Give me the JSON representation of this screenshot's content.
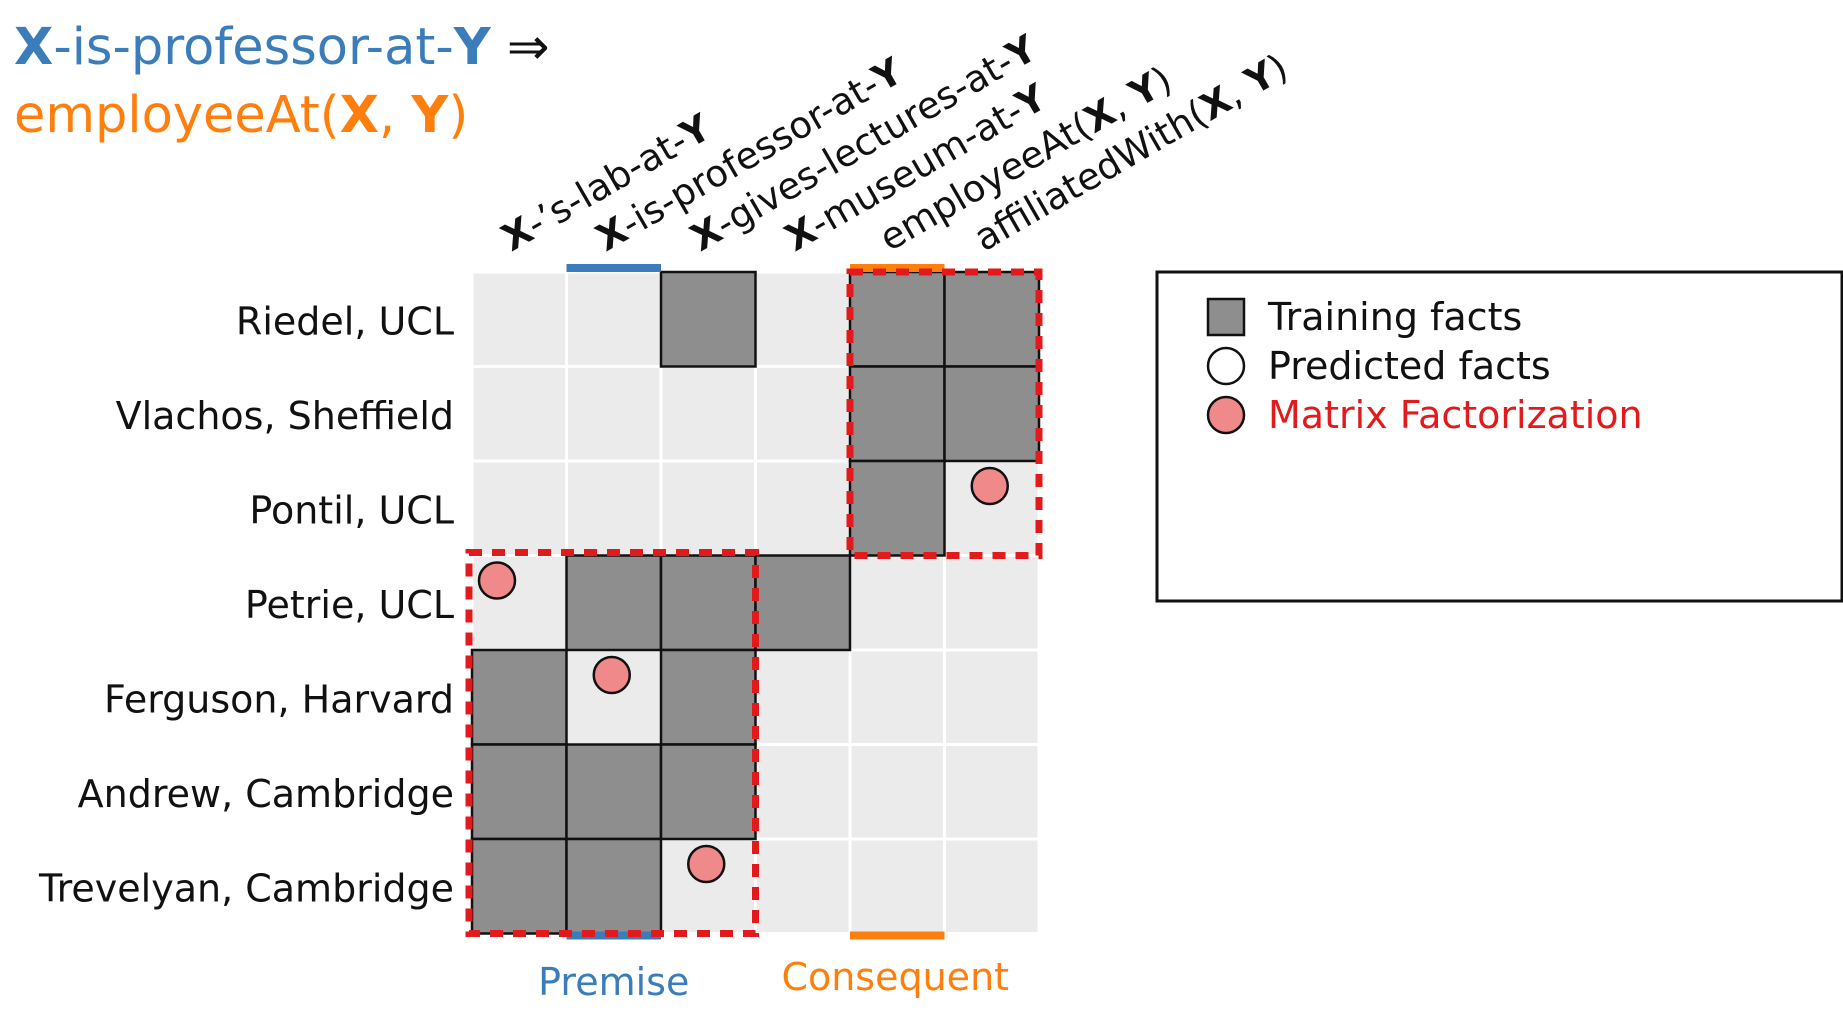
{
  "title": {
    "line1": [
      {
        "text": "X",
        "style": "blue-bold"
      },
      {
        "text": "-is-professor-at-",
        "style": "blue"
      },
      {
        "text": "Y",
        "style": "blue-bold"
      },
      {
        "text": " ⇒",
        "style": "arrow"
      }
    ],
    "line2": [
      {
        "text": "employeeAt(",
        "style": "orange"
      },
      {
        "text": "X",
        "style": "orange-bold"
      },
      {
        "text": ", ",
        "style": "orange"
      },
      {
        "text": "Y",
        "style": "orange-bold"
      },
      {
        "text": ")",
        "style": "orange"
      }
    ]
  },
  "columns": [
    [
      {
        "t": "X",
        "b": true
      },
      {
        "t": "-’s-lab-at-",
        "b": false
      },
      {
        "t": "Y",
        "b": true
      }
    ],
    [
      {
        "t": "X",
        "b": true
      },
      {
        "t": "-is-professor-at-",
        "b": false
      },
      {
        "t": "Y",
        "b": true
      }
    ],
    [
      {
        "t": "X",
        "b": true
      },
      {
        "t": "-gives-lectures-at-",
        "b": false
      },
      {
        "t": "Y",
        "b": true
      }
    ],
    [
      {
        "t": "X",
        "b": true
      },
      {
        "t": "-museum-at-",
        "b": false
      },
      {
        "t": "Y",
        "b": true
      }
    ],
    [
      {
        "t": "employeeAt(",
        "b": false
      },
      {
        "t": "X",
        "b": true
      },
      {
        "t": ", ",
        "b": false
      },
      {
        "t": "Y",
        "b": true
      },
      {
        "t": ")",
        "b": false
      }
    ],
    [
      {
        "t": "affiliatedWith(",
        "b": false
      },
      {
        "t": "X",
        "b": true
      },
      {
        "t": ", ",
        "b": false
      },
      {
        "t": "Y",
        "b": true
      },
      {
        "t": ")",
        "b": false
      }
    ]
  ],
  "rows": [
    "Riedel, UCL",
    "Vlachos, Sheffield",
    "Pontil, UCL",
    "Petrie, UCL",
    "Ferguson, Harvard",
    "Andrew, Cambridge",
    "Trevelyan, Cambridge"
  ],
  "matrix": [
    [
      0,
      0,
      1,
      0,
      1,
      1
    ],
    [
      0,
      0,
      0,
      0,
      1,
      1
    ],
    [
      0,
      0,
      0,
      0,
      1,
      0
    ],
    [
      0,
      1,
      1,
      1,
      0,
      0
    ],
    [
      1,
      0,
      1,
      0,
      0,
      0
    ],
    [
      1,
      1,
      1,
      0,
      0,
      0
    ],
    [
      1,
      1,
      0,
      0,
      0,
      0
    ]
  ],
  "predicted": [
    [
      2,
      5
    ],
    [
      3,
      0
    ],
    [
      4,
      1
    ],
    [
      6,
      2
    ]
  ],
  "highlight_column_premise": 1,
  "highlight_column_consequent": 4,
  "axis_labels": {
    "premise": "Premise",
    "consequent": "Consequent"
  },
  "legend": [
    {
      "label": "Training facts",
      "marker": "square"
    },
    {
      "label": "Predicted facts",
      "marker": "circle"
    },
    {
      "label": "Matrix Factorization",
      "marker": "pink-circle"
    }
  ],
  "colors": {
    "blue": "#3b7dba",
    "orange": "#ff7f0e",
    "red": "#e31a1c",
    "training_fill": "#8e8e8e",
    "empty_fill": "#ebebeb",
    "predicted_fill": "#f08a8a",
    "legend_red_text": "#e31a1c"
  }
}
